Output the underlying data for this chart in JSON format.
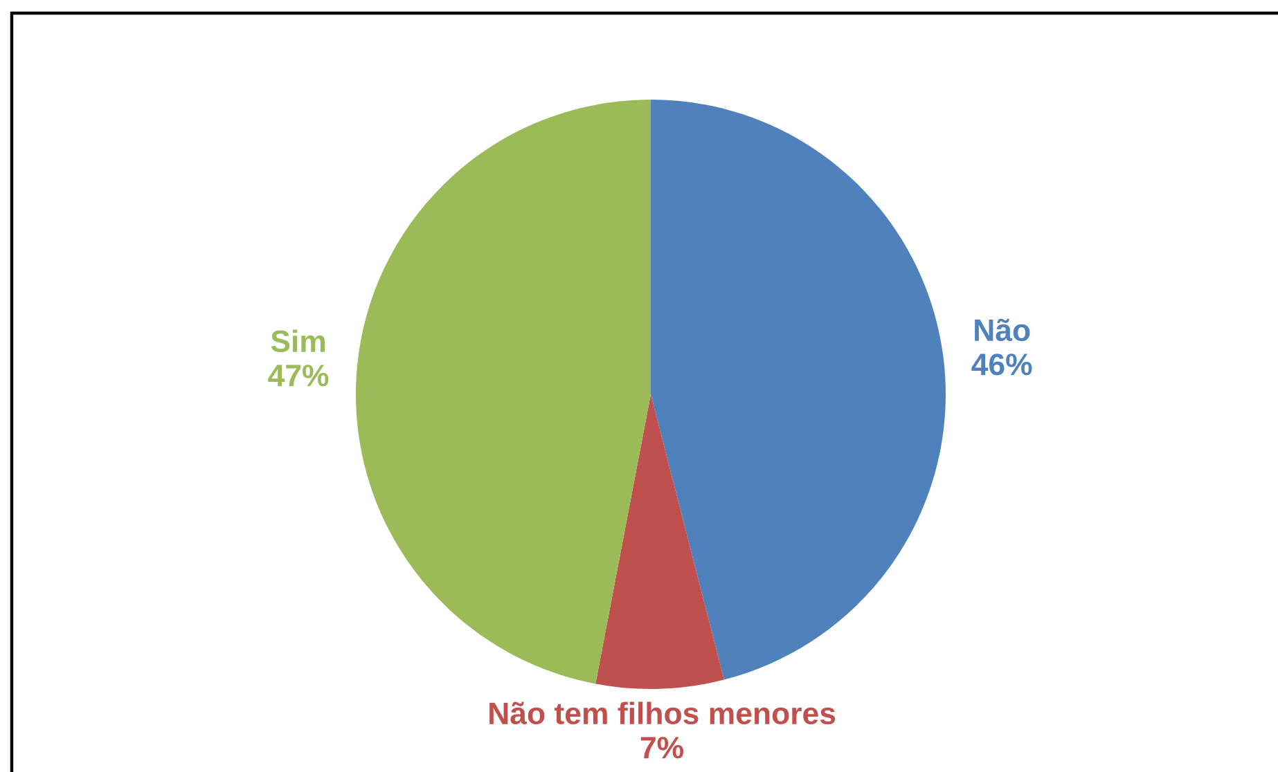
{
  "chart_data": {
    "type": "pie",
    "categories": [
      "Não",
      "Não tem filhos menores",
      "Sim"
    ],
    "values": [
      46,
      7,
      47
    ],
    "value_labels": [
      "46%",
      "7%",
      "47%"
    ],
    "colors": [
      "#4f81bd",
      "#c0504d",
      "#9bbb59"
    ],
    "legend": false
  }
}
